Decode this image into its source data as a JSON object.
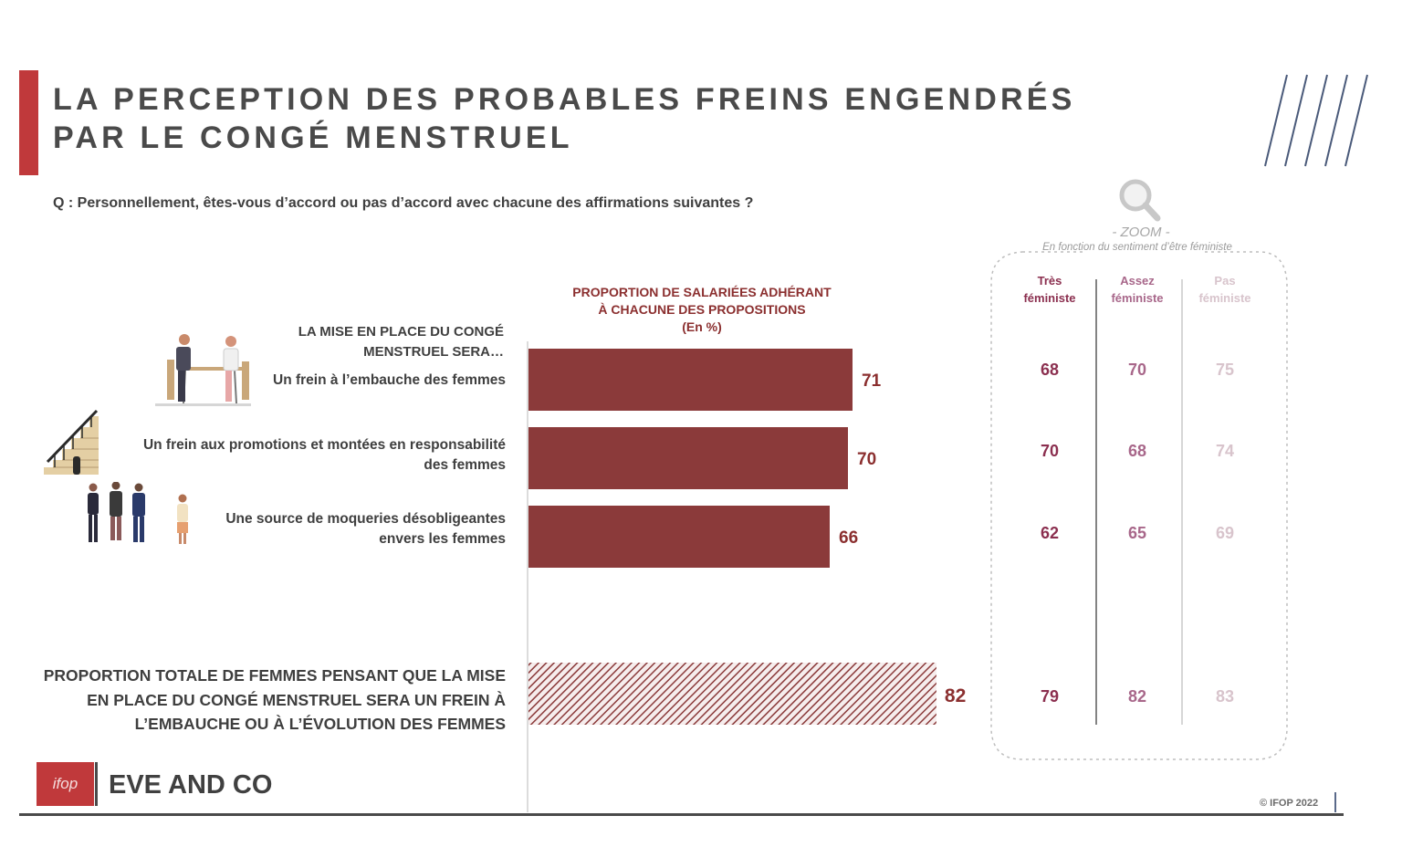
{
  "slide": {
    "title": "LA PERCEPTION DES PROBABLES FREINS ENGENDRÉS\nPAR LE CONGÉ MENSTRUEL",
    "question": "Q : Personnellement, êtes-vous d’accord ou pas d’accord avec chacune des affirmations suivantes ?",
    "intro_label": "LA MISE EN PLACE DU CONGÉ MENSTRUEL SERA…",
    "total_label": "PROPORTION TOTALE DE FEMMES PENSANT QUE LA MISE EN PLACE DU CONGÉ MENSTRUEL SERA UN FREIN À L’EMBAUCHE OU À L’ÉVOLUTION DES FEMMES",
    "brand": "EVE AND CO",
    "logo_text": "ifop",
    "copyright": "© IFOP 2022"
  },
  "chart_header": {
    "line1": "PROPORTION DE SALARIÉES ADHÉRANT",
    "line2": "À CHACUNE DES PROPOSITIONS",
    "unit": "(En %)"
  },
  "chart_data": {
    "type": "bar",
    "orientation": "horizontal",
    "categories": [
      "Un frein à l’embauche des femmes",
      "Un frein aux promotions et montées en responsabilité des femmes",
      "Une source de moqueries désobligeantes envers les femmes"
    ],
    "values": [
      71,
      70,
      66
    ],
    "total": {
      "value": 82,
      "pattern": "hatched"
    },
    "colors": {
      "bar": "#8b3a3a",
      "total": "#8b3a3a"
    }
  },
  "zoom": {
    "title": "- ZOOM -",
    "subtitle": "En fonction du sentiment d’être féministe",
    "columns": [
      {
        "line1": "Très",
        "line2": "féministe",
        "color": "#8b2f4f",
        "values": [
          "68",
          "70",
          "62",
          "79"
        ]
      },
      {
        "line1": "Assez",
        "line2": "féministe",
        "color": "#a8678a",
        "values": [
          "70",
          "68",
          "65",
          "82"
        ]
      },
      {
        "line1": "Pas",
        "line2": "féministe",
        "color": "#d8c4cc",
        "values": [
          "75",
          "74",
          "69",
          "83"
        ]
      }
    ]
  },
  "icons": [
    "meeting-icon",
    "staircase-icon",
    "people-group-icon",
    "magnifier-icon",
    "diagonal-lines-decoration"
  ]
}
